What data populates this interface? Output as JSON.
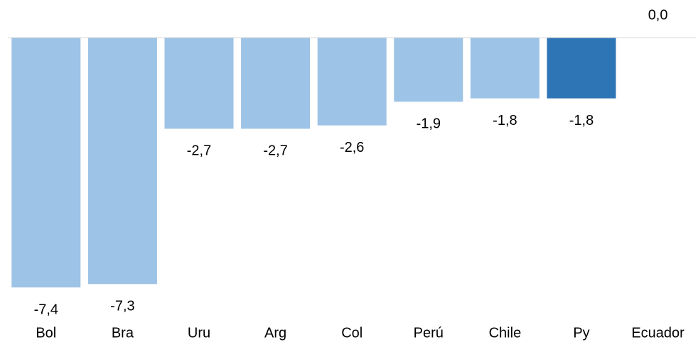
{
  "chart_data": {
    "type": "bar",
    "categories": [
      "Bol",
      "Bra",
      "Uru",
      "Arg",
      "Col",
      "Perú",
      "Chile",
      "Py",
      "Ecuador"
    ],
    "values": [
      -7.4,
      -7.3,
      -2.7,
      -2.7,
      -2.6,
      -1.9,
      -1.8,
      -1.8,
      0.0
    ],
    "value_labels": [
      "-7,4",
      "-7,3",
      "-2,7",
      "-2,7",
      "-2,6",
      "-1,9",
      "-1,8",
      "-1,8",
      "0,0"
    ],
    "colors": [
      "#9dc3e6",
      "#9dc3e6",
      "#9dc3e6",
      "#9dc3e6",
      "#9dc3e6",
      "#9dc3e6",
      "#9dc3e6",
      "#2e75b6",
      "#9dc3e6"
    ],
    "ylim": [
      -8,
      0
    ]
  }
}
